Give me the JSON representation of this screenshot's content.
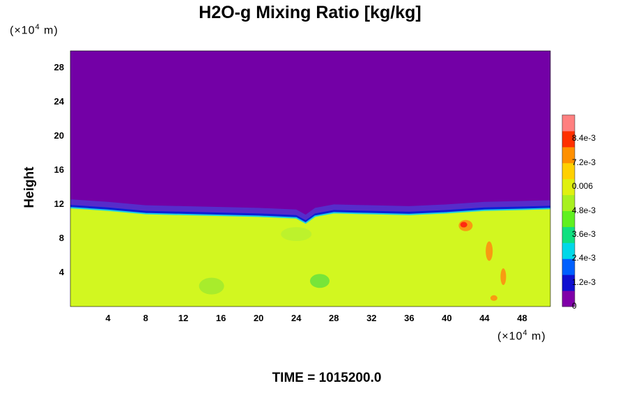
{
  "title": "H2O-g Mixing Ratio [kg/kg]",
  "y_unit": {
    "prefix": "(×10",
    "exp": "4",
    "suffix": " m)"
  },
  "x_unit": {
    "prefix": "(×10",
    "exp": "4",
    "suffix": " m)"
  },
  "ylabel": "Height",
  "time_label": "TIME = 1015200.0",
  "colors": {
    "upper_air": "#7300a6",
    "lower_air": "#d2f720",
    "boundary_blue": "#0a1fd6"
  },
  "chart_data": {
    "type": "heatmap",
    "title": "H2O-g Mixing Ratio [kg/kg]",
    "xlabel": "",
    "ylabel": "Height",
    "x_unit": "×10^4 m",
    "y_unit": "×10^4 m",
    "xlim": [
      0,
      51
    ],
    "ylim": [
      0,
      30
    ],
    "x_ticks": [
      4,
      8,
      12,
      16,
      20,
      24,
      28,
      32,
      36,
      40,
      44,
      48
    ],
    "y_ticks": [
      4,
      8,
      12,
      16,
      20,
      24,
      28
    ],
    "boundary_height": [
      [
        0,
        11.6
      ],
      [
        4,
        11.3
      ],
      [
        8,
        10.9
      ],
      [
        12,
        10.8
      ],
      [
        16,
        10.7
      ],
      [
        20,
        10.6
      ],
      [
        24,
        10.4
      ],
      [
        25,
        9.8
      ],
      [
        26,
        10.6
      ],
      [
        28,
        11.0
      ],
      [
        32,
        10.9
      ],
      [
        36,
        10.8
      ],
      [
        40,
        11.0
      ],
      [
        44,
        11.3
      ],
      [
        48,
        11.4
      ],
      [
        51,
        11.5
      ]
    ],
    "upper_value": 0,
    "lower_value": 0.0066,
    "colorbar": {
      "min": 0,
      "max": 0.0096,
      "ticks": [
        "0",
        "1.2e-3",
        "2.4e-3",
        "3.6e-3",
        "4.8e-3",
        "0.006",
        "7.2e-3",
        "8.4e-3"
      ],
      "tick_values": [
        0,
        0.0012,
        0.0024,
        0.0036,
        0.0048,
        0.006,
        0.0072,
        0.0084
      ],
      "colors": [
        "#8000a8",
        "#1010d0",
        "#0060ff",
        "#00d8e8",
        "#10e080",
        "#60f020",
        "#a8f020",
        "#e0f010",
        "#ffd000",
        "#ff9000",
        "#ff3000",
        "#ff8080"
      ]
    },
    "time": "TIME = 1015200.0"
  }
}
